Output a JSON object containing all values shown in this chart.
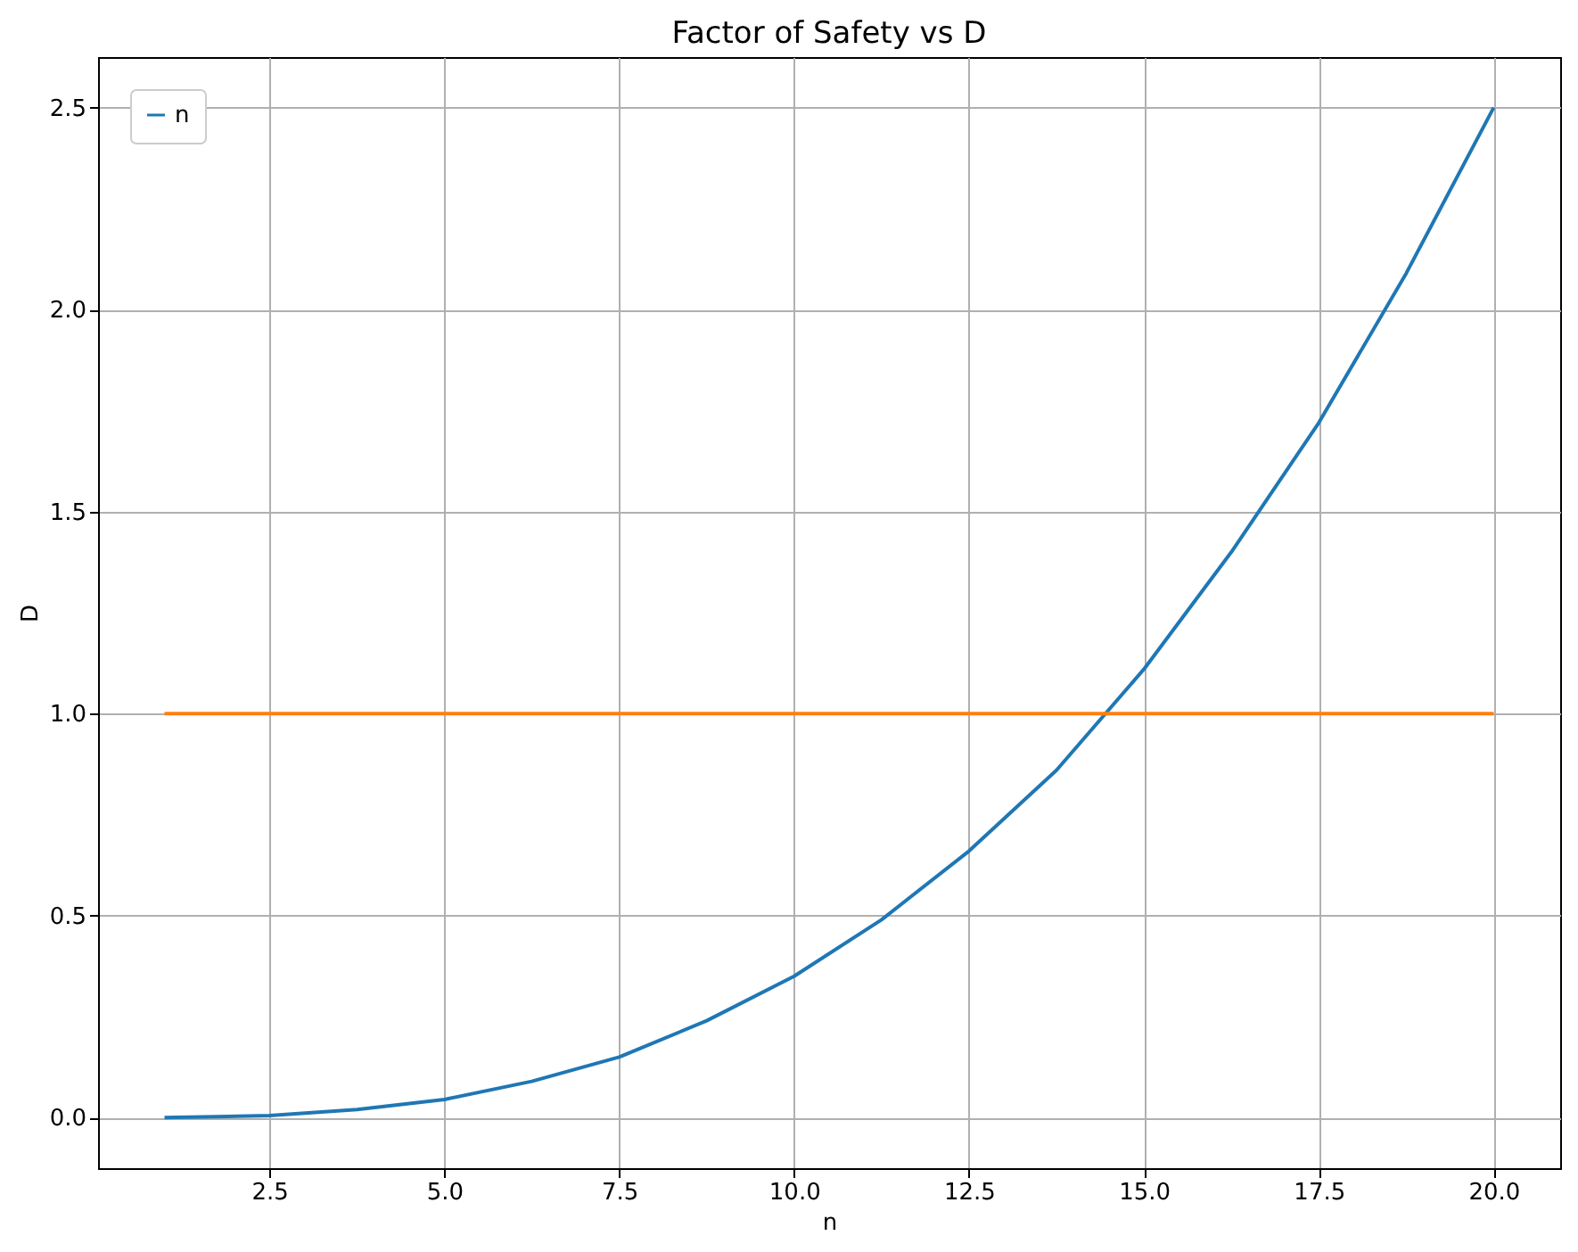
{
  "chart_data": {
    "type": "line",
    "title": "Factor of Safety vs D",
    "xlabel": "n",
    "ylabel": "D",
    "xlim": [
      0.05,
      20.95
    ],
    "xticks": [
      {
        "value": 2.5,
        "label": "2.5"
      },
      {
        "value": 5,
        "label": "5.0"
      },
      {
        "value": 7.5,
        "label": "7.5"
      },
      {
        "value": 10,
        "label": "10.0"
      },
      {
        "value": 12.5,
        "label": "12.5"
      },
      {
        "value": 15,
        "label": "15.0"
      },
      {
        "value": 17.5,
        "label": "17.5"
      },
      {
        "value": 20,
        "label": "20.0"
      }
    ],
    "ylim": [
      -0.125,
      2.625
    ],
    "yticks": [
      {
        "value": 0,
        "label": "0.0"
      },
      {
        "value": 0.5,
        "label": "0.5"
      },
      {
        "value": 1,
        "label": "1.0"
      },
      {
        "value": 1.5,
        "label": "1.5"
      },
      {
        "value": 2,
        "label": "2.0"
      },
      {
        "value": 2.5,
        "label": "2.5"
      }
    ],
    "grid": true,
    "legend": "top left",
    "line_style": "solid",
    "marker": "none",
    "series": [
      {
        "name": "n",
        "color": "#1f77b4",
        "x": [
          1,
          2.5,
          3.75,
          5,
          6.25,
          7.5,
          8.75,
          10,
          11.25,
          12.5,
          13.75,
          15,
          16.25,
          17.5,
          18.75,
          20
        ],
        "values": [
          0,
          0.005,
          0.02,
          0.045,
          0.09,
          0.15,
          0.24,
          0.35,
          0.49,
          0.66,
          0.86,
          1.11,
          1.4,
          1.72,
          2.09,
          2.5
        ]
      },
      {
        "color": "#ff7f0e",
        "x": [
          1,
          20
        ],
        "values": [
          1,
          1
        ]
      }
    ]
  }
}
